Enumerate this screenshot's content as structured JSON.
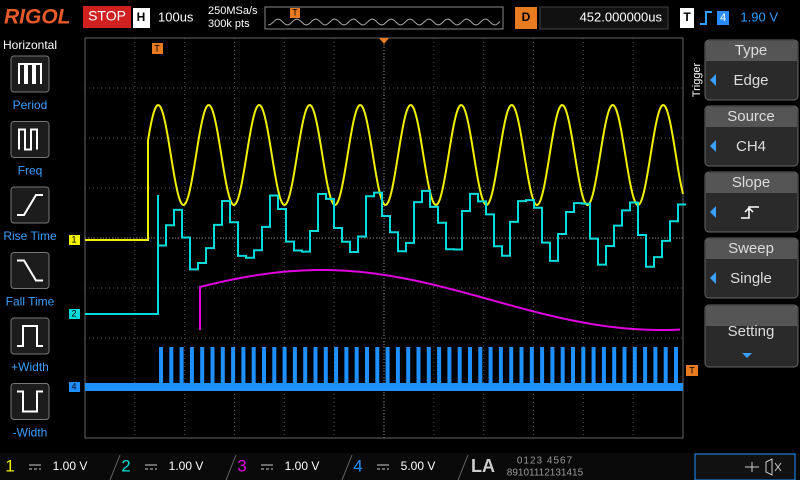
{
  "header": {
    "logo": "RIGOL",
    "status": "STOP",
    "timebase_label": "H",
    "timebase": "100us",
    "sample_rate": "250MSa/s",
    "memory_depth": "300k pts",
    "timeline_marker": "T",
    "delay_label": "D",
    "delay": "452.000000us",
    "trigger_label": "T",
    "trigger_source": "4",
    "trigger_level": "1.90 V"
  },
  "left_menu": {
    "title": "Horizontal",
    "items": [
      "Period",
      "Freq",
      "Rise Time",
      "Fall Time",
      "+Width",
      "-Width"
    ]
  },
  "right_menu": {
    "title": "Trigger",
    "items": [
      {
        "label": "Type",
        "value": "Edge"
      },
      {
        "label": "Source",
        "value": "CH4"
      },
      {
        "label": "Slope"
      },
      {
        "label": "Sweep",
        "value": "Single"
      },
      {
        "label": "Setting"
      }
    ]
  },
  "screen": {
    "channel_markers": [
      "1",
      "2",
      "4"
    ],
    "trigger_position_marker": "T",
    "trigger_level_marker": "T"
  },
  "footer": {
    "channels": [
      {
        "number": "1",
        "scale": "1.00 V"
      },
      {
        "number": "2",
        "scale": "1.00 V"
      },
      {
        "number": "3",
        "scale": "1.00 V"
      },
      {
        "number": "4",
        "scale": "5.00 V"
      }
    ],
    "la_label": "LA",
    "la_bits_top": "0123 4567",
    "la_bits_bottom": "89101112131415"
  }
}
